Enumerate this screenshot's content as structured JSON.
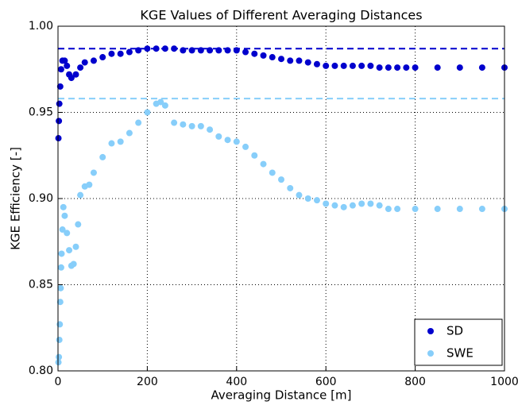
{
  "chart_data": {
    "type": "scatter",
    "title": "KGE Values of Different Averaging Distances",
    "xlabel": "Averaging Distance [m]",
    "ylabel": "KGE Efficiency [-]",
    "xlim": [
      0,
      1000
    ],
    "ylim": [
      0.8,
      1.0
    ],
    "xticks": [
      0,
      200,
      400,
      600,
      800,
      1000
    ],
    "yticks": [
      {
        "value": 0.8,
        "label": "0.80"
      },
      0.85,
      {
        "value": 0.9,
        "label": "0.90"
      },
      0.95,
      {
        "value": 1.0,
        "label": "1.00"
      }
    ],
    "grid": true,
    "legend": "lower right",
    "hlines": [
      {
        "value": 0.987,
        "color": "#0000cd"
      },
      {
        "value": 0.958,
        "color": "#87cefa"
      }
    ],
    "series": [
      {
        "name": "SD",
        "color": "#0000cd",
        "x": [
          1,
          2,
          3,
          5,
          7,
          10,
          15,
          20,
          25,
          30,
          40,
          50,
          60,
          80,
          100,
          120,
          140,
          160,
          180,
          200,
          220,
          240,
          260,
          280,
          300,
          320,
          340,
          360,
          380,
          400,
          420,
          440,
          460,
          480,
          500,
          520,
          540,
          560,
          580,
          600,
          620,
          640,
          660,
          680,
          700,
          720,
          740,
          760,
          780,
          800,
          850,
          900,
          950,
          1000
        ],
        "values": [
          0.935,
          0.945,
          0.955,
          0.965,
          0.975,
          0.98,
          0.98,
          0.977,
          0.972,
          0.97,
          0.972,
          0.976,
          0.979,
          0.98,
          0.982,
          0.984,
          0.984,
          0.985,
          0.986,
          0.987,
          0.987,
          0.987,
          0.987,
          0.986,
          0.986,
          0.986,
          0.986,
          0.986,
          0.986,
          0.986,
          0.985,
          0.984,
          0.983,
          0.982,
          0.981,
          0.98,
          0.98,
          0.979,
          0.978,
          0.977,
          0.977,
          0.977,
          0.977,
          0.977,
          0.977,
          0.976,
          0.976,
          0.976,
          0.976,
          0.976,
          0.976,
          0.976,
          0.976,
          0.976
        ]
      },
      {
        "name": "SWE",
        "color": "#87cefa",
        "x": [
          1,
          2,
          3,
          4,
          5,
          6,
          7,
          8,
          10,
          12,
          15,
          20,
          25,
          30,
          35,
          40,
          45,
          50,
          60,
          70,
          80,
          100,
          120,
          140,
          160,
          180,
          200,
          220,
          230,
          240,
          260,
          280,
          300,
          320,
          340,
          360,
          380,
          400,
          420,
          440,
          460,
          480,
          500,
          520,
          540,
          560,
          580,
          600,
          620,
          640,
          660,
          680,
          700,
          720,
          740,
          760,
          800,
          850,
          900,
          950,
          1000
        ],
        "values": [
          0.805,
          0.808,
          0.818,
          0.827,
          0.84,
          0.848,
          0.86,
          0.868,
          0.882,
          0.895,
          0.89,
          0.88,
          0.87,
          0.861,
          0.862,
          0.872,
          0.885,
          0.902,
          0.907,
          0.908,
          0.915,
          0.924,
          0.932,
          0.933,
          0.938,
          0.944,
          0.95,
          0.955,
          0.956,
          0.954,
          0.944,
          0.943,
          0.942,
          0.942,
          0.94,
          0.936,
          0.934,
          0.933,
          0.93,
          0.925,
          0.92,
          0.915,
          0.911,
          0.906,
          0.902,
          0.9,
          0.899,
          0.897,
          0.896,
          0.895,
          0.896,
          0.897,
          0.897,
          0.896,
          0.894,
          0.894,
          0.894,
          0.894,
          0.894,
          0.894,
          0.894
        ]
      }
    ]
  }
}
